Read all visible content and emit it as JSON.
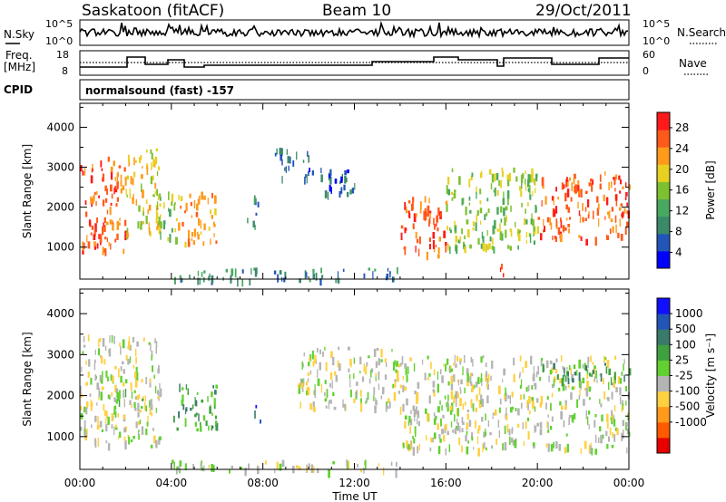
{
  "header": {
    "station": "Saskatoon (fitACF)",
    "beam": "Beam 10",
    "date": "29/Oct/2011"
  },
  "params": {
    "nsky_label": "N.Sky",
    "nsearch_label": "N.Search",
    "freq_label_line1": "Freq.",
    "freq_label_line2": "[MHz]",
    "nave_label": "Nave",
    "cpid_label": "CPID",
    "cpid_value": "normalsound (fast) -157",
    "nsky_ticks": [
      "10^5",
      "10^0"
    ],
    "nsearch_ticks": [
      "10^5",
      "10^0"
    ],
    "freq_ticks": [
      "18",
      "8"
    ],
    "nave_ticks": [
      "60",
      "0"
    ]
  },
  "colors": {
    "power": [
      "#0000ff",
      "#2255b8",
      "#3a8a6a",
      "#48a860",
      "#7dc030",
      "#e8d020",
      "#ff9a1a",
      "#ff5a1a",
      "#ff1a1a"
    ],
    "velocity": [
      "#e80000",
      "#ff5a00",
      "#ff9a1a",
      "#ffd040",
      "#b4b4b4",
      "#62d030",
      "#3fa040",
      "#3a7a6a",
      "#2255b8",
      "#1010ff"
    ]
  },
  "chart_data": [
    {
      "type": "heatmap",
      "title": "",
      "xlabel": "Time UT",
      "ylabel": "Slant Range [km]",
      "xlim": [
        0,
        24
      ],
      "ylim": [
        200,
        4600
      ],
      "x_ticks": [
        "00:00",
        "04:00",
        "08:00",
        "12:00",
        "16:00",
        "20:00",
        "00:00"
      ],
      "y_ticks": [
        "1000",
        "2000",
        "3000",
        "4000"
      ],
      "colorbar_label": "Power [dB]",
      "colorbar_ticks": [
        "28",
        "24",
        "20",
        "16",
        "12",
        "8",
        "4"
      ],
      "regions": [
        {
          "x0": 0.0,
          "x1": 2.0,
          "y0": 900,
          "y1": 3300,
          "level": 7
        },
        {
          "x0": 2.0,
          "x1": 3.5,
          "y0": 1300,
          "y1": 3500,
          "level": 5
        },
        {
          "x0": 3.3,
          "x1": 4.2,
          "y0": 1200,
          "y1": 2500,
          "level": 4
        },
        {
          "x0": 4.2,
          "x1": 6.0,
          "y0": 1100,
          "y1": 2400,
          "level": 6
        },
        {
          "x0": 7.3,
          "x1": 7.8,
          "y0": 1400,
          "y1": 2300,
          "level": 2
        },
        {
          "x0": 8.5,
          "x1": 10.0,
          "y0": 2700,
          "y1": 3500,
          "level": 1
        },
        {
          "x0": 10.0,
          "x1": 12.0,
          "y0": 2300,
          "y1": 3000,
          "level": 1
        },
        {
          "x0": 4.0,
          "x1": 14.0,
          "y0": 200,
          "y1": 500,
          "level": 2
        },
        {
          "x0": 14.0,
          "x1": 16.0,
          "y0": 800,
          "y1": 2300,
          "level": 7
        },
        {
          "x0": 16.0,
          "x1": 20.0,
          "y0": 1000,
          "y1": 3000,
          "level": 4
        },
        {
          "x0": 20.0,
          "x1": 24.0,
          "y0": 1200,
          "y1": 2900,
          "level": 7
        },
        {
          "x0": 18.3,
          "x1": 18.5,
          "y0": 200,
          "y1": 1000,
          "level": 8
        }
      ]
    },
    {
      "type": "heatmap",
      "title": "",
      "xlabel": "Time UT",
      "ylabel": "Slant Range [km]",
      "xlim": [
        0,
        24
      ],
      "ylim": [
        200,
        4600
      ],
      "x_ticks": [
        "00:00",
        "04:00",
        "08:00",
        "12:00",
        "16:00",
        "20:00",
        "00:00"
      ],
      "y_ticks": [
        "1000",
        "2000",
        "3000",
        "4000"
      ],
      "colorbar_label": "Velocity [m s⁻¹]",
      "colorbar_ticks": [
        "1000",
        "500",
        "100",
        "25",
        "-25",
        "-100",
        "-500",
        "-1000"
      ],
      "regions": [
        {
          "x0": 0.0,
          "x1": 3.5,
          "y0": 800,
          "y1": 3500,
          "level": 4
        },
        {
          "x0": 1.5,
          "x1": 3.0,
          "y0": 1800,
          "y1": 2200,
          "level": 5
        },
        {
          "x0": 4.0,
          "x1": 6.0,
          "y0": 1200,
          "y1": 2300,
          "level": 6
        },
        {
          "x0": 9.5,
          "x1": 14.0,
          "y0": 1700,
          "y1": 3200,
          "level": 4
        },
        {
          "x0": 14.0,
          "x1": 24.0,
          "y0": 700,
          "y1": 3000,
          "level": 4
        },
        {
          "x0": 20.0,
          "x1": 24.0,
          "y0": 2400,
          "y1": 2800,
          "level": 6
        },
        {
          "x0": 4.0,
          "x1": 14.0,
          "y0": 200,
          "y1": 450,
          "level": 4
        },
        {
          "x0": 7.6,
          "x1": 7.9,
          "y0": 1400,
          "y1": 1900,
          "level": 8
        }
      ]
    }
  ]
}
